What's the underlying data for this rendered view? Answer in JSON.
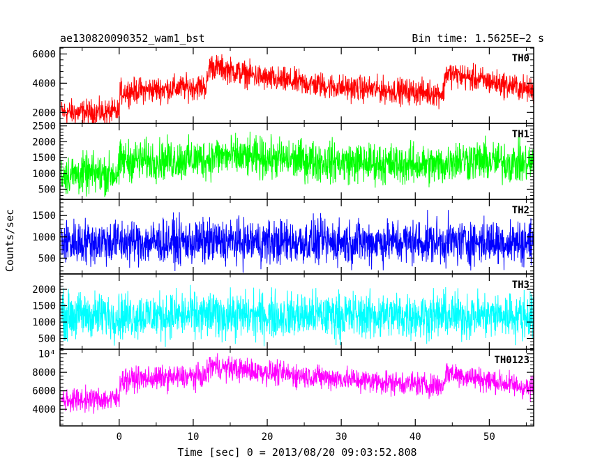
{
  "header": {
    "title": "ae130820090352_wam1_bst",
    "bin_time": "Bin time: 1.5625E−2 s"
  },
  "chart_data": {
    "type": "line",
    "ylabel": "Counts/sec",
    "xlabel": "Time [sec] 0 = 2013/08/20 09:03:52.808",
    "xlim": [
      -8,
      56
    ],
    "x_ticks": [
      "0",
      "10",
      "20",
      "30",
      "40",
      "50"
    ],
    "x_tick_values": [
      0,
      10,
      20,
      30,
      40,
      50
    ],
    "panels": [
      {
        "name": "TH0",
        "color": "#ff0000",
        "ylim": [
          1250,
          6450
        ],
        "y_ticks": [
          "2000",
          "4000",
          "6000"
        ],
        "y_tick_values": [
          2000,
          4000,
          6000
        ],
        "level": [
          [
            -8,
            2000
          ],
          [
            0,
            2000
          ],
          [
            0.1,
            3400
          ],
          [
            11.8,
            3800
          ],
          [
            12.2,
            5200
          ],
          [
            14,
            5000
          ],
          [
            20,
            4300
          ],
          [
            30,
            3700
          ],
          [
            43.8,
            3300
          ],
          [
            44.1,
            4700
          ],
          [
            56,
            3500
          ]
        ],
        "amplitude": 1300
      },
      {
        "name": "TH1",
        "color": "#00ff00",
        "ylim": [
          180,
          2580
        ],
        "y_ticks": [
          "500",
          "1000",
          "1500",
          "2000",
          "2500"
        ],
        "y_tick_values": [
          500,
          1000,
          1500,
          2000,
          2500
        ],
        "level": [
          [
            -8,
            950
          ],
          [
            0,
            1000
          ],
          [
            0.1,
            1400
          ],
          [
            12,
            1450
          ],
          [
            13,
            1550
          ],
          [
            30,
            1350
          ],
          [
            44,
            1250
          ],
          [
            45,
            1450
          ],
          [
            56,
            1300
          ]
        ],
        "amplitude": 950
      },
      {
        "name": "TH2",
        "color": "#0000ff",
        "ylim": [
          130,
          1880
        ],
        "y_ticks": [
          "500",
          "1000",
          "1500"
        ],
        "y_tick_values": [
          500,
          1000,
          1500
        ],
        "level": [
          [
            -8,
            880
          ],
          [
            56,
            880
          ]
        ],
        "amplitude": 780
      },
      {
        "name": "TH3",
        "color": "#00ffff",
        "ylim": [
          170,
          2470
        ],
        "y_ticks": [
          "500",
          "1000",
          "1500",
          "2000"
        ],
        "y_tick_values": [
          500,
          1000,
          1500,
          2000
        ],
        "level": [
          [
            -8,
            1200
          ],
          [
            56,
            1200
          ]
        ],
        "amplitude": 1050
      },
      {
        "name": "TH0123",
        "color": "#ff00ff",
        "ylim": [
          2200,
          10500
        ],
        "y_ticks": [
          "4000",
          "6000",
          "8000",
          "10⁴"
        ],
        "y_tick_values": [
          4000,
          6000,
          8000,
          10000
        ],
        "level": [
          [
            -8,
            5000
          ],
          [
            0,
            5100
          ],
          [
            0.1,
            7200
          ],
          [
            11.8,
            7600
          ],
          [
            12.2,
            8800
          ],
          [
            14,
            8500
          ],
          [
            25,
            7600
          ],
          [
            43.8,
            6500
          ],
          [
            44.1,
            8000
          ],
          [
            56,
            6200
          ]
        ],
        "amplitude": 1900
      }
    ]
  }
}
